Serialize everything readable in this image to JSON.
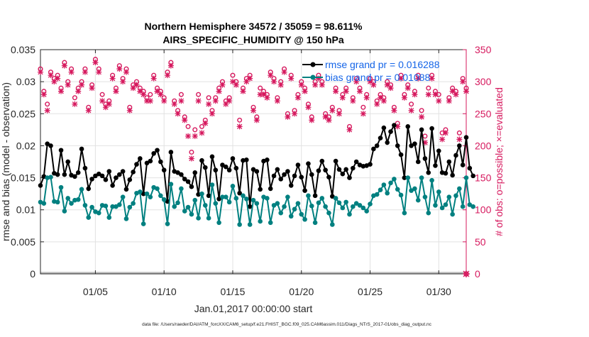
{
  "chart_data": {
    "type": "line",
    "title": "Northern Hemisphere 34572 / 35059 = 98.611%",
    "subtitle": "AIRS_SPECIFIC_HUMIDITY @ 150 hPa",
    "xlabel": "Jan.01,2017 00:00:00 start",
    "ylabel_left": "rmse and bias (model - observation)",
    "ylabel_right": "# of obs: o=possible; ×=evaluated",
    "xlim": [
      1,
      32
    ],
    "ylim_left": [
      0,
      0.035
    ],
    "ylim_right": [
      0,
      350
    ],
    "x_ticks": [
      5,
      10,
      15,
      20,
      25,
      30
    ],
    "x_tick_labels": [
      "01/05",
      "01/10",
      "01/15",
      "01/20",
      "01/25",
      "01/30"
    ],
    "y_left_ticks": [
      0,
      0.005,
      0.01,
      0.015,
      0.02,
      0.025,
      0.03,
      0.035
    ],
    "y_left_tick_labels": [
      "0",
      "0.005",
      "0.01",
      "0.015",
      "0.02",
      "0.025",
      "0.03",
      "0.035"
    ],
    "y_right_ticks": [
      0,
      50,
      100,
      150,
      200,
      250,
      300,
      350
    ],
    "y_right_tick_labels": [
      "0",
      "50",
      "100",
      "150",
      "200",
      "250",
      "300",
      "350"
    ],
    "grid": true,
    "legend_position": "top-right",
    "footnote": "data file: /Users/raeder/DAI/ATM_forcXX/CAM6_setup/f.e21.FHIST_BGC.f09_025.CAM6assim.011/Diags_NTrS_2017-01/obs_diag_output.nc",
    "colors": {
      "rmse": "#000000",
      "bias": "#008080",
      "obs": "#d6195e",
      "axis": "#262626",
      "grid": "#e2e2e2",
      "legend_text": "#1565e8",
      "zero_line": "#bdbdbd"
    },
    "series": [
      {
        "name": "rmse",
        "legend_label": "rmse grand pr = 0.016288",
        "axis": "left",
        "x_start": 1.0,
        "x_step": 0.25,
        "values": [
          0.0138,
          0.0152,
          0.0203,
          0.02,
          0.0157,
          0.0155,
          0.0193,
          0.0155,
          0.0175,
          0.0154,
          0.0152,
          0.0158,
          0.0195,
          0.0165,
          0.0133,
          0.0148,
          0.0153,
          0.0156,
          0.0153,
          0.0147,
          0.016,
          0.0138,
          0.015,
          0.0155,
          0.016,
          0.0132,
          0.0147,
          0.0159,
          0.0171,
          0.018,
          0.0125,
          0.0173,
          0.0176,
          0.0188,
          0.0193,
          0.0175,
          0.0162,
          0.0113,
          0.019,
          0.016,
          0.0158,
          0.0155,
          0.0148,
          0.0144,
          0.0136,
          0.0158,
          0.0124,
          0.0177,
          0.0166,
          0.0122,
          0.0183,
          0.0162,
          0.0117,
          0.017,
          0.0167,
          0.0162,
          0.018,
          0.0165,
          0.0126,
          0.0177,
          0.0178,
          0.0105,
          0.0163,
          0.016,
          0.0132,
          0.0176,
          0.0178,
          0.0133,
          0.0153,
          0.0163,
          0.0148,
          0.0155,
          0.016,
          0.0138,
          0.0153,
          0.017,
          0.0151,
          0.013,
          0.0172,
          0.0155,
          0.0122,
          0.0161,
          0.0176,
          0.0162,
          0.0151,
          0.0121,
          0.0176,
          0.0163,
          0.0156,
          0.0163,
          0.015,
          0.0165,
          0.0175,
          0.017,
          0.0168,
          0.0169,
          0.0171,
          0.0195,
          0.02,
          0.0212,
          0.0228,
          0.0205,
          0.0222,
          0.0232,
          0.02,
          0.0186,
          0.015,
          0.023,
          0.02,
          0.0203,
          0.0175,
          0.0225,
          0.018,
          0.0158,
          0.0227,
          0.0169,
          0.0192,
          0.0158,
          0.0157,
          0.0175,
          0.0154,
          0.0185,
          0.02,
          0.017,
          0.0213,
          0.0165,
          0.0153
        ]
      },
      {
        "name": "bias",
        "legend_label": "bias grand pr = 0.01088",
        "axis": "left",
        "x_start": 1.0,
        "x_step": 0.25,
        "values": [
          0.0112,
          0.011,
          0.015,
          0.0151,
          0.0113,
          0.0112,
          0.0135,
          0.0098,
          0.0118,
          0.011,
          0.0115,
          0.0116,
          0.0132,
          0.0107,
          0.0088,
          0.0104,
          0.0097,
          0.0095,
          0.0107,
          0.0106,
          0.0088,
          0.0105,
          0.0105,
          0.0108,
          0.012,
          0.0086,
          0.0104,
          0.011,
          0.0126,
          0.0128,
          0.0078,
          0.0125,
          0.012,
          0.0135,
          0.0133,
          0.0122,
          0.0116,
          0.0078,
          0.014,
          0.0105,
          0.0111,
          0.0133,
          0.0098,
          0.0104,
          0.0093,
          0.0115,
          0.0087,
          0.0125,
          0.0107,
          0.0087,
          0.0139,
          0.011,
          0.008,
          0.012,
          0.012,
          0.0112,
          0.0137,
          0.0118,
          0.0077,
          0.0122,
          0.0117,
          0.0077,
          0.0115,
          0.011,
          0.0082,
          0.012,
          0.0118,
          0.008,
          0.0107,
          0.011,
          0.0095,
          0.0105,
          0.012,
          0.009,
          0.0101,
          0.011,
          0.0093,
          0.0085,
          0.0122,
          0.0106,
          0.008,
          0.0111,
          0.0118,
          0.0105,
          0.0095,
          0.0077,
          0.0118,
          0.0111,
          0.0103,
          0.0112,
          0.0093,
          0.0105,
          0.011,
          0.0107,
          0.0103,
          0.0098,
          0.0109,
          0.0122,
          0.0124,
          0.0131,
          0.0139,
          0.0126,
          0.0142,
          0.0148,
          0.0132,
          0.0123,
          0.0095,
          0.015,
          0.013,
          0.0133,
          0.0115,
          0.015,
          0.012,
          0.0095,
          0.0146,
          0.0107,
          0.0128,
          0.0103,
          0.0108,
          0.012,
          0.0093,
          0.0122,
          0.0133,
          0.0105,
          0.015,
          0.0108,
          0.0105
        ]
      },
      {
        "name": "obs-possible",
        "marker": "o",
        "axis": "right",
        "x_start": 1.0,
        "x_step": 0.25,
        "values": [
          320,
          285,
          265,
          315,
          305,
          310,
          290,
          330,
          300,
          320,
          275,
          290,
          300,
          320,
          260,
          295,
          335,
          320,
          280,
          265,
          270,
          310,
          290,
          325,
          305,
          320,
          260,
          295,
          300,
          290,
          285,
          275,
          280,
          310,
          290,
          285,
          275,
          315,
          330,
          270,
          255,
          280,
          245,
          230,
          190,
          225,
          280,
          230,
          240,
          275,
          255,
          275,
          290,
          300,
          270,
          275,
          310,
          300,
          240,
          290,
          305,
          310,
          260,
          245,
          290,
          285,
          280,
          315,
          305,
          275,
          300,
          320,
          250,
          310,
          255,
          280,
          300,
          290,
          265,
          245,
          300,
          310,
          300,
          250,
          245,
          260,
          290,
          255,
          280,
          290,
          230,
          275,
          305,
          290,
          260,
          280,
          305,
          300,
          270,
          280,
          275,
          300,
          295,
          260,
          235,
          310,
          280,
          295,
          265,
          285,
          310,
          255,
          215,
          290,
          310,
          285,
          280,
          220,
          225,
          275,
          290,
          285,
          220,
          305,
          290,
          305,
          310
        ]
      },
      {
        "name": "obs-evaluated",
        "marker": "x",
        "axis": "right",
        "x_start": 1.0,
        "x_step": 0.25,
        "values": [
          315,
          280,
          255,
          310,
          300,
          305,
          285,
          325,
          295,
          315,
          265,
          285,
          295,
          315,
          255,
          290,
          330,
          315,
          270,
          260,
          265,
          305,
          285,
          320,
          300,
          315,
          255,
          290,
          295,
          285,
          280,
          270,
          270,
          305,
          285,
          280,
          270,
          310,
          325,
          265,
          250,
          270,
          240,
          215,
          180,
          215,
          270,
          220,
          235,
          265,
          250,
          270,
          285,
          295,
          265,
          270,
          300,
          295,
          230,
          285,
          300,
          305,
          255,
          240,
          280,
          280,
          275,
          310,
          300,
          270,
          295,
          315,
          245,
          305,
          250,
          275,
          295,
          285,
          260,
          240,
          295,
          305,
          295,
          245,
          240,
          255,
          285,
          250,
          275,
          285,
          225,
          270,
          300,
          285,
          250,
          275,
          300,
          295,
          265,
          275,
          270,
          295,
          290,
          255,
          230,
          305,
          275,
          290,
          255,
          280,
          305,
          245,
          205,
          280,
          305,
          280,
          270,
          210,
          220,
          270,
          285,
          280,
          210,
          300,
          285,
          300,
          305
        ]
      }
    ]
  }
}
